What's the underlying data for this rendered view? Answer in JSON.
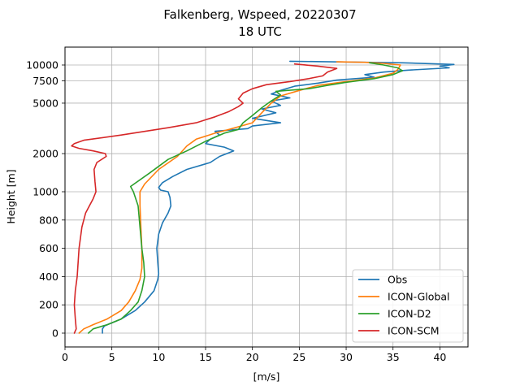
{
  "chart_data": {
    "type": "line",
    "title": "Falkenberg, Wspeed, 20220307",
    "subtitle": "18 UTC",
    "xlabel": "[m/s]",
    "ylabel": "Height [m]",
    "xlim": [
      0,
      43
    ],
    "x_ticks": [
      "0",
      "5",
      "10",
      "15",
      "20",
      "25",
      "30",
      "35",
      "40"
    ],
    "y_ticks": [
      "0",
      "200",
      "400",
      "600",
      "800",
      "1000",
      "2000",
      "5000",
      "7500",
      "10000"
    ],
    "y_tick_values": [
      0,
      200,
      400,
      600,
      800,
      1000,
      2000,
      5000,
      7500,
      10000
    ],
    "y_scale": "piecewise: linear 0-1000 m, logarithmic above 1000 m",
    "grid": true,
    "legend_position": "bottom-right",
    "series": [
      {
        "name": "Obs",
        "color": "#1f77b4",
        "points": [
          [
            4.0,
            0
          ],
          [
            4.0,
            30
          ],
          [
            4.2,
            50
          ],
          [
            6.0,
            100
          ],
          [
            7.5,
            160
          ],
          [
            8.5,
            220
          ],
          [
            9.5,
            300
          ],
          [
            9.9,
            380
          ],
          [
            10.0,
            420
          ],
          [
            9.9,
            500
          ],
          [
            9.8,
            600
          ],
          [
            10.0,
            700
          ],
          [
            10.4,
            780
          ],
          [
            11.0,
            850
          ],
          [
            11.3,
            900
          ],
          [
            11.2,
            960
          ],
          [
            11.0,
            1000
          ],
          [
            10.2,
            1030
          ],
          [
            10.0,
            1080
          ],
          [
            10.4,
            1180
          ],
          [
            11.5,
            1320
          ],
          [
            13.0,
            1500
          ],
          [
            15.5,
            1700
          ],
          [
            16.5,
            1900
          ],
          [
            18.0,
            2100
          ],
          [
            17.0,
            2250
          ],
          [
            15.0,
            2400
          ],
          [
            15.5,
            2600
          ],
          [
            16.5,
            2800
          ],
          [
            16.0,
            3000
          ],
          [
            19.5,
            3150
          ],
          [
            20.0,
            3300
          ],
          [
            23.0,
            3500
          ],
          [
            20.0,
            3800
          ],
          [
            22.5,
            4200
          ],
          [
            21.0,
            4500
          ],
          [
            23.0,
            4800
          ],
          [
            22.0,
            5200
          ],
          [
            24.0,
            5500
          ],
          [
            22.0,
            5900
          ],
          [
            23.0,
            6300
          ],
          [
            24.5,
            6800
          ],
          [
            27.0,
            7200
          ],
          [
            29.0,
            7600
          ],
          [
            31.0,
            7800
          ],
          [
            33.0,
            8000
          ],
          [
            32.0,
            8400
          ],
          [
            34.0,
            8800
          ],
          [
            36.5,
            9100
          ],
          [
            41.0,
            9500
          ],
          [
            40.0,
            9800
          ],
          [
            41.5,
            10100
          ],
          [
            36.0,
            10400
          ],
          [
            24.0,
            10700
          ]
        ]
      },
      {
        "name": "ICON-Global",
        "color": "#ff7f0e",
        "points": [
          [
            1.5,
            0
          ],
          [
            2.0,
            30
          ],
          [
            3.0,
            60
          ],
          [
            4.5,
            100
          ],
          [
            6.0,
            160
          ],
          [
            6.8,
            220
          ],
          [
            7.5,
            300
          ],
          [
            8.0,
            380
          ],
          [
            8.2,
            460
          ],
          [
            8.2,
            600
          ],
          [
            8.1,
            750
          ],
          [
            8.0,
            900
          ],
          [
            8.0,
            1000
          ],
          [
            8.5,
            1150
          ],
          [
            10.0,
            1500
          ],
          [
            12.0,
            1900
          ],
          [
            13.0,
            2300
          ],
          [
            14.0,
            2600
          ],
          [
            16.0,
            2900
          ],
          [
            17.5,
            3100
          ],
          [
            20.0,
            3500
          ],
          [
            21.0,
            4200
          ],
          [
            22.0,
            5000
          ],
          [
            23.0,
            5700
          ],
          [
            25.0,
            6300
          ],
          [
            27.0,
            6900
          ],
          [
            30.0,
            7400
          ],
          [
            33.0,
            7900
          ],
          [
            35.0,
            8600
          ],
          [
            35.5,
            9200
          ],
          [
            35.8,
            10000
          ],
          [
            34.0,
            10300
          ],
          [
            32.0,
            10500
          ],
          [
            29.0,
            10600
          ]
        ]
      },
      {
        "name": "ICON-D2",
        "color": "#2ca02c",
        "points": [
          [
            2.5,
            0
          ],
          [
            3.0,
            30
          ],
          [
            4.5,
            60
          ],
          [
            6.0,
            100
          ],
          [
            7.0,
            160
          ],
          [
            7.8,
            220
          ],
          [
            8.2,
            300
          ],
          [
            8.5,
            400
          ],
          [
            8.4,
            500
          ],
          [
            8.2,
            600
          ],
          [
            8.0,
            750
          ],
          [
            7.8,
            900
          ],
          [
            7.3,
            1000
          ],
          [
            7.0,
            1100
          ],
          [
            9.0,
            1400
          ],
          [
            11.0,
            1800
          ],
          [
            13.0,
            2100
          ],
          [
            15.0,
            2500
          ],
          [
            17.0,
            2900
          ],
          [
            18.5,
            3100
          ],
          [
            19.0,
            3500
          ],
          [
            20.0,
            4000
          ],
          [
            21.0,
            4600
          ],
          [
            22.0,
            5200
          ],
          [
            23.0,
            5800
          ],
          [
            22.5,
            6200
          ],
          [
            26.0,
            6500
          ],
          [
            28.0,
            6900
          ],
          [
            30.0,
            7300
          ],
          [
            33.0,
            7800
          ],
          [
            35.0,
            8400
          ],
          [
            36.0,
            9000
          ],
          [
            35.5,
            9500
          ],
          [
            34.0,
            10000
          ],
          [
            32.5,
            10400
          ]
        ]
      },
      {
        "name": "ICON-SCM",
        "color": "#d62728",
        "points": [
          [
            1.0,
            0
          ],
          [
            1.2,
            30
          ],
          [
            1.1,
            100
          ],
          [
            1.0,
            200
          ],
          [
            1.1,
            300
          ],
          [
            1.3,
            400
          ],
          [
            1.5,
            600
          ],
          [
            1.8,
            750
          ],
          [
            2.2,
            850
          ],
          [
            2.6,
            900
          ],
          [
            3.0,
            950
          ],
          [
            3.3,
            1000
          ],
          [
            3.2,
            1200
          ],
          [
            3.1,
            1500
          ],
          [
            3.4,
            1700
          ],
          [
            4.4,
            1900
          ],
          [
            4.3,
            2000
          ],
          [
            3.0,
            2100
          ],
          [
            1.5,
            2200
          ],
          [
            0.7,
            2300
          ],
          [
            1.0,
            2400
          ],
          [
            2.0,
            2550
          ],
          [
            6.0,
            2800
          ],
          [
            11.0,
            3200
          ],
          [
            14.0,
            3500
          ],
          [
            16.0,
            3900
          ],
          [
            17.5,
            4300
          ],
          [
            18.5,
            4700
          ],
          [
            19.0,
            5000
          ],
          [
            18.5,
            5400
          ],
          [
            19.0,
            6000
          ],
          [
            20.0,
            6500
          ],
          [
            21.5,
            7000
          ],
          [
            24.0,
            7400
          ],
          [
            26.0,
            7800
          ],
          [
            27.5,
            8200
          ],
          [
            28.0,
            8800
          ],
          [
            29.0,
            9400
          ],
          [
            27.0,
            9800
          ],
          [
            24.5,
            10200
          ]
        ]
      }
    ]
  }
}
